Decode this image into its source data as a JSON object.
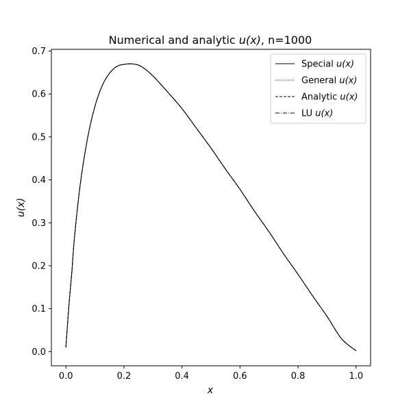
{
  "chart_data": {
    "type": "line",
    "title": {
      "prefix": "Numerical and analytic ",
      "math": "u(x)",
      "suffix": ", n=1000"
    },
    "xlabel": "x",
    "ylabel": "u(x)",
    "xlim": [
      -0.05,
      1.05
    ],
    "ylim": [
      -0.033,
      0.704
    ],
    "xticks": [
      0.0,
      0.2,
      0.4,
      0.6,
      0.8,
      1.0
    ],
    "xtick_labels": [
      "0.0",
      "0.2",
      "0.4",
      "0.6",
      "0.8",
      "1.0"
    ],
    "yticks": [
      0.0,
      0.1,
      0.2,
      0.3,
      0.4,
      0.5,
      0.6,
      0.7
    ],
    "ytick_labels": [
      "0.0",
      "0.1",
      "0.2",
      "0.3",
      "0.4",
      "0.5",
      "0.6",
      "0.7"
    ],
    "grid": false,
    "legend_position": "top-right",
    "x": [
      0.0,
      0.01,
      0.02,
      0.03,
      0.05,
      0.075,
      0.1,
      0.125,
      0.15,
      0.175,
      0.2,
      0.23,
      0.26,
      0.3,
      0.35,
      0.4,
      0.45,
      0.5,
      0.55,
      0.6,
      0.65,
      0.7,
      0.75,
      0.8,
      0.85,
      0.9,
      0.95,
      1.0
    ],
    "series": [
      {
        "label_prefix": "Special ",
        "label_math": "u(x)",
        "linestyle": "solid",
        "values": [
          0.01,
          0.104,
          0.181,
          0.269,
          0.392,
          0.498,
          0.571,
          0.619,
          0.648,
          0.664,
          0.669,
          0.67,
          0.664,
          0.642,
          0.605,
          0.566,
          0.52,
          0.474,
          0.425,
          0.378,
          0.327,
          0.279,
          0.228,
          0.18,
          0.13,
          0.082,
          0.03,
          0.002
        ]
      },
      {
        "label_prefix": "General ",
        "label_math": "u(x)",
        "linestyle": "dotted",
        "values": [
          0.01,
          0.104,
          0.181,
          0.269,
          0.392,
          0.498,
          0.571,
          0.619,
          0.648,
          0.664,
          0.669,
          0.67,
          0.664,
          0.642,
          0.605,
          0.566,
          0.52,
          0.474,
          0.425,
          0.378,
          0.327,
          0.279,
          0.228,
          0.18,
          0.13,
          0.082,
          0.03,
          0.002
        ]
      },
      {
        "label_prefix": "Analytic ",
        "label_math": "u(x)",
        "linestyle": "dashed",
        "values": [
          0.01,
          0.104,
          0.181,
          0.269,
          0.392,
          0.498,
          0.571,
          0.619,
          0.648,
          0.664,
          0.669,
          0.67,
          0.664,
          0.642,
          0.605,
          0.566,
          0.52,
          0.474,
          0.425,
          0.378,
          0.327,
          0.279,
          0.228,
          0.18,
          0.13,
          0.082,
          0.03,
          0.002
        ]
      },
      {
        "label_prefix": "LU ",
        "label_math": "u(x)",
        "linestyle": "dashdot",
        "values": [
          0.01,
          0.104,
          0.181,
          0.269,
          0.392,
          0.498,
          0.571,
          0.619,
          0.648,
          0.664,
          0.669,
          0.67,
          0.664,
          0.642,
          0.605,
          0.566,
          0.52,
          0.474,
          0.425,
          0.378,
          0.327,
          0.279,
          0.228,
          0.18,
          0.13,
          0.082,
          0.03,
          0.002
        ]
      }
    ],
    "colors": {
      "line": "#000000",
      "frame": "#000000",
      "legend_border": "#cccccc"
    }
  }
}
